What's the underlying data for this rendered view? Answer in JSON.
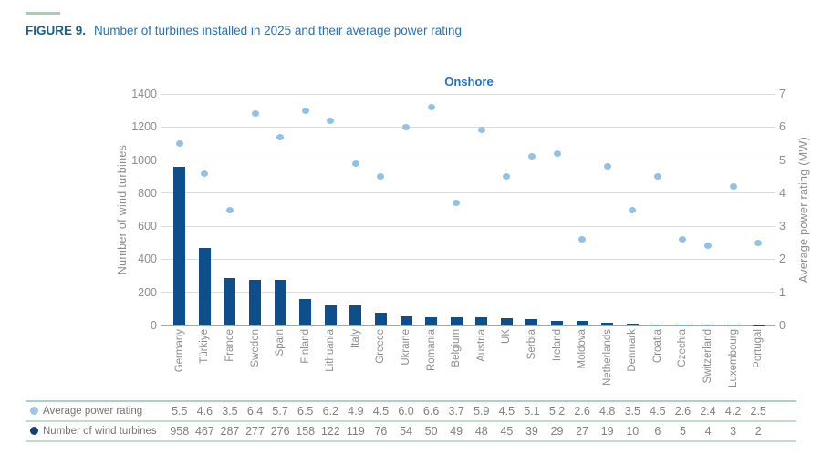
{
  "figure": {
    "label": "FIGURE 9.",
    "title": "Number of turbines installed in 2025 and their average power rating"
  },
  "chart": {
    "subtitle": "Onshore",
    "left_axis_label": "Number of wind turbines",
    "right_axis_label": "Average power rating (MW)"
  },
  "chart_data": {
    "type": "bar",
    "title": "Onshore",
    "categories": [
      "Germany",
      "Türkiye",
      "France",
      "Sweden",
      "Spain",
      "Finland",
      "Lithuania",
      "Italy",
      "Greece",
      "Ukraine",
      "Romania",
      "Belgium",
      "Austria",
      "UK",
      "Serbia",
      "Ireland",
      "Moldova",
      "Netherlands",
      "Denmark",
      "Croatia",
      "Czechia",
      "Switzerland",
      "Luxembourg",
      "Portugal"
    ],
    "series": [
      {
        "name": "Number of wind turbines",
        "type": "bar",
        "axis": "left",
        "values": [
          958,
          467,
          287,
          277,
          276,
          158,
          122,
          119,
          76,
          54,
          50,
          49,
          48,
          45,
          39,
          29,
          27,
          19,
          10,
          6,
          5,
          4,
          3,
          2
        ]
      },
      {
        "name": "Average power rating",
        "type": "scatter",
        "axis": "right",
        "values": [
          5.5,
          4.6,
          3.5,
          6.4,
          5.7,
          6.5,
          6.2,
          4.9,
          4.5,
          6.0,
          6.6,
          3.7,
          5.9,
          4.5,
          5.1,
          5.2,
          2.6,
          4.8,
          3.5,
          4.5,
          2.6,
          2.4,
          4.2,
          2.5
        ]
      }
    ],
    "left_ylabel": "Number of wind turbines",
    "right_ylabel": "Average power rating (MW)",
    "left_ylim": [
      0,
      1400
    ],
    "right_ylim": [
      0,
      7
    ],
    "left_ticks": [
      0,
      200,
      400,
      600,
      800,
      1000,
      1200,
      1400
    ],
    "right_ticks": [
      0,
      1,
      2,
      3,
      4,
      5,
      6,
      7
    ],
    "grid": true,
    "legend_position": "bottom-table"
  },
  "table": {
    "rows": [
      {
        "label": "Average power rating",
        "marker": "light-blue-dot",
        "values": [
          "5.5",
          "4.6",
          "3.5",
          "6.4",
          "5.7",
          "6.5",
          "6.2",
          "4.9",
          "4.5",
          "6.0",
          "6.6",
          "3.7",
          "5.9",
          "4.5",
          "5.1",
          "5.2",
          "2.6",
          "4.8",
          "3.5",
          "4.5",
          "2.6",
          "2.4",
          "4.2",
          "2.5"
        ]
      },
      {
        "label": "Number of wind turbines",
        "marker": "dark-blue-dot",
        "values": [
          "958",
          "467",
          "287",
          "277",
          "276",
          "158",
          "122",
          "119",
          "76",
          "54",
          "50",
          "49",
          "48",
          "45",
          "39",
          "29",
          "27",
          "19",
          "10",
          "6",
          "5",
          "4",
          "3",
          "2"
        ]
      }
    ]
  },
  "colors": {
    "bar": "#0d4e8b",
    "scatter_dot": "#92c1e8",
    "legend_dark_dot": "#14416f",
    "legend_light_dot": "#9dc5e8",
    "title_prefix": "#14618f",
    "title_blue": "#2173be",
    "accent_green": "#a9cbb7",
    "grid": "#dcdcdc",
    "axis_text": "#8c8c8c"
  }
}
